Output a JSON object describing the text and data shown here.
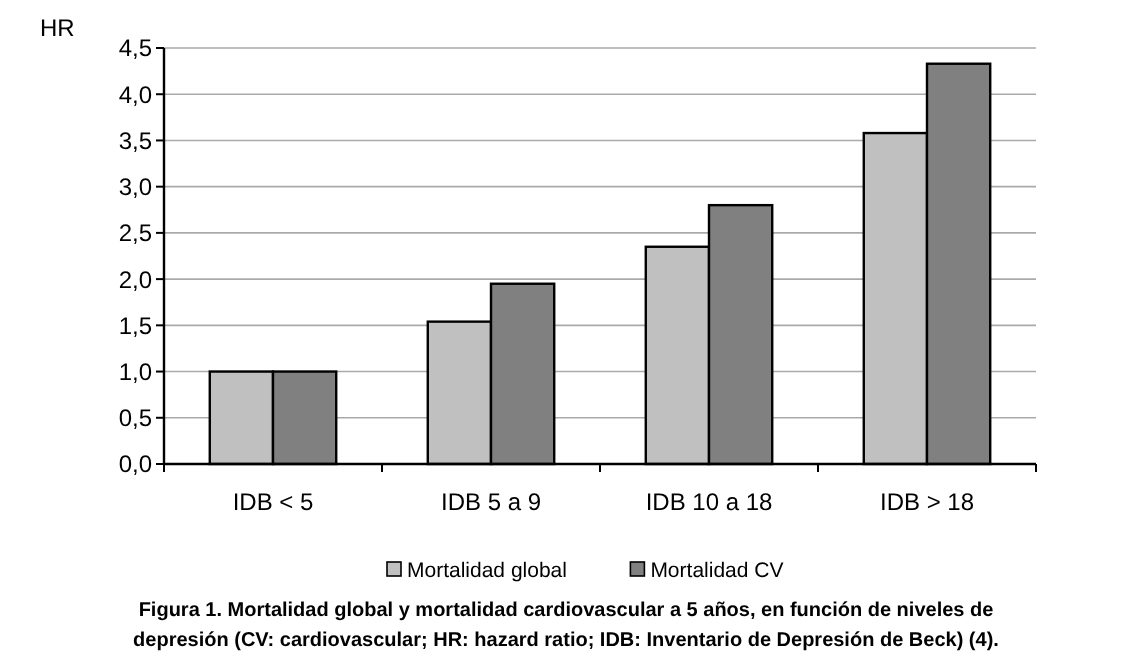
{
  "chart_data": {
    "type": "bar",
    "ylabel": "HR",
    "categories": [
      "IDB < 5",
      "IDB 5 a 9",
      "IDB 10 a 18",
      "IDB  > 18"
    ],
    "series": [
      {
        "name": "Mortalidad global",
        "color": "#c0c0c0",
        "values": [
          1.0,
          1.54,
          2.35,
          3.58
        ]
      },
      {
        "name": "Mortalidad CV",
        "color": "#808080",
        "values": [
          1.0,
          1.95,
          2.8,
          4.33
        ]
      }
    ],
    "ylim": [
      0,
      4.5
    ],
    "yticks": [
      {
        "value": 0,
        "label": "0,0"
      },
      {
        "value": 0.5,
        "label": "0,5"
      },
      {
        "value": 1,
        "label": "1,0"
      },
      {
        "value": 1.5,
        "label": "1,5"
      },
      {
        "value": 2,
        "label": "2,0"
      },
      {
        "value": 2.5,
        "label": "2,5"
      },
      {
        "value": 3,
        "label": "3,0"
      },
      {
        "value": 3.5,
        "label": "3,5"
      },
      {
        "value": 4,
        "label": "4,0"
      },
      {
        "value": 4.5,
        "label": "4,5"
      }
    ],
    "grid": "y",
    "legend": "bottom",
    "annotations": [
      "Figura 1. Mortalidad global y mortalidad cardiovascular a 5 años, en función de niveles de",
      "depresión (CV: cardiovascular; HR: hazard ratio; IDB: Inventario de Depresión de Beck) (4)."
    ]
  }
}
